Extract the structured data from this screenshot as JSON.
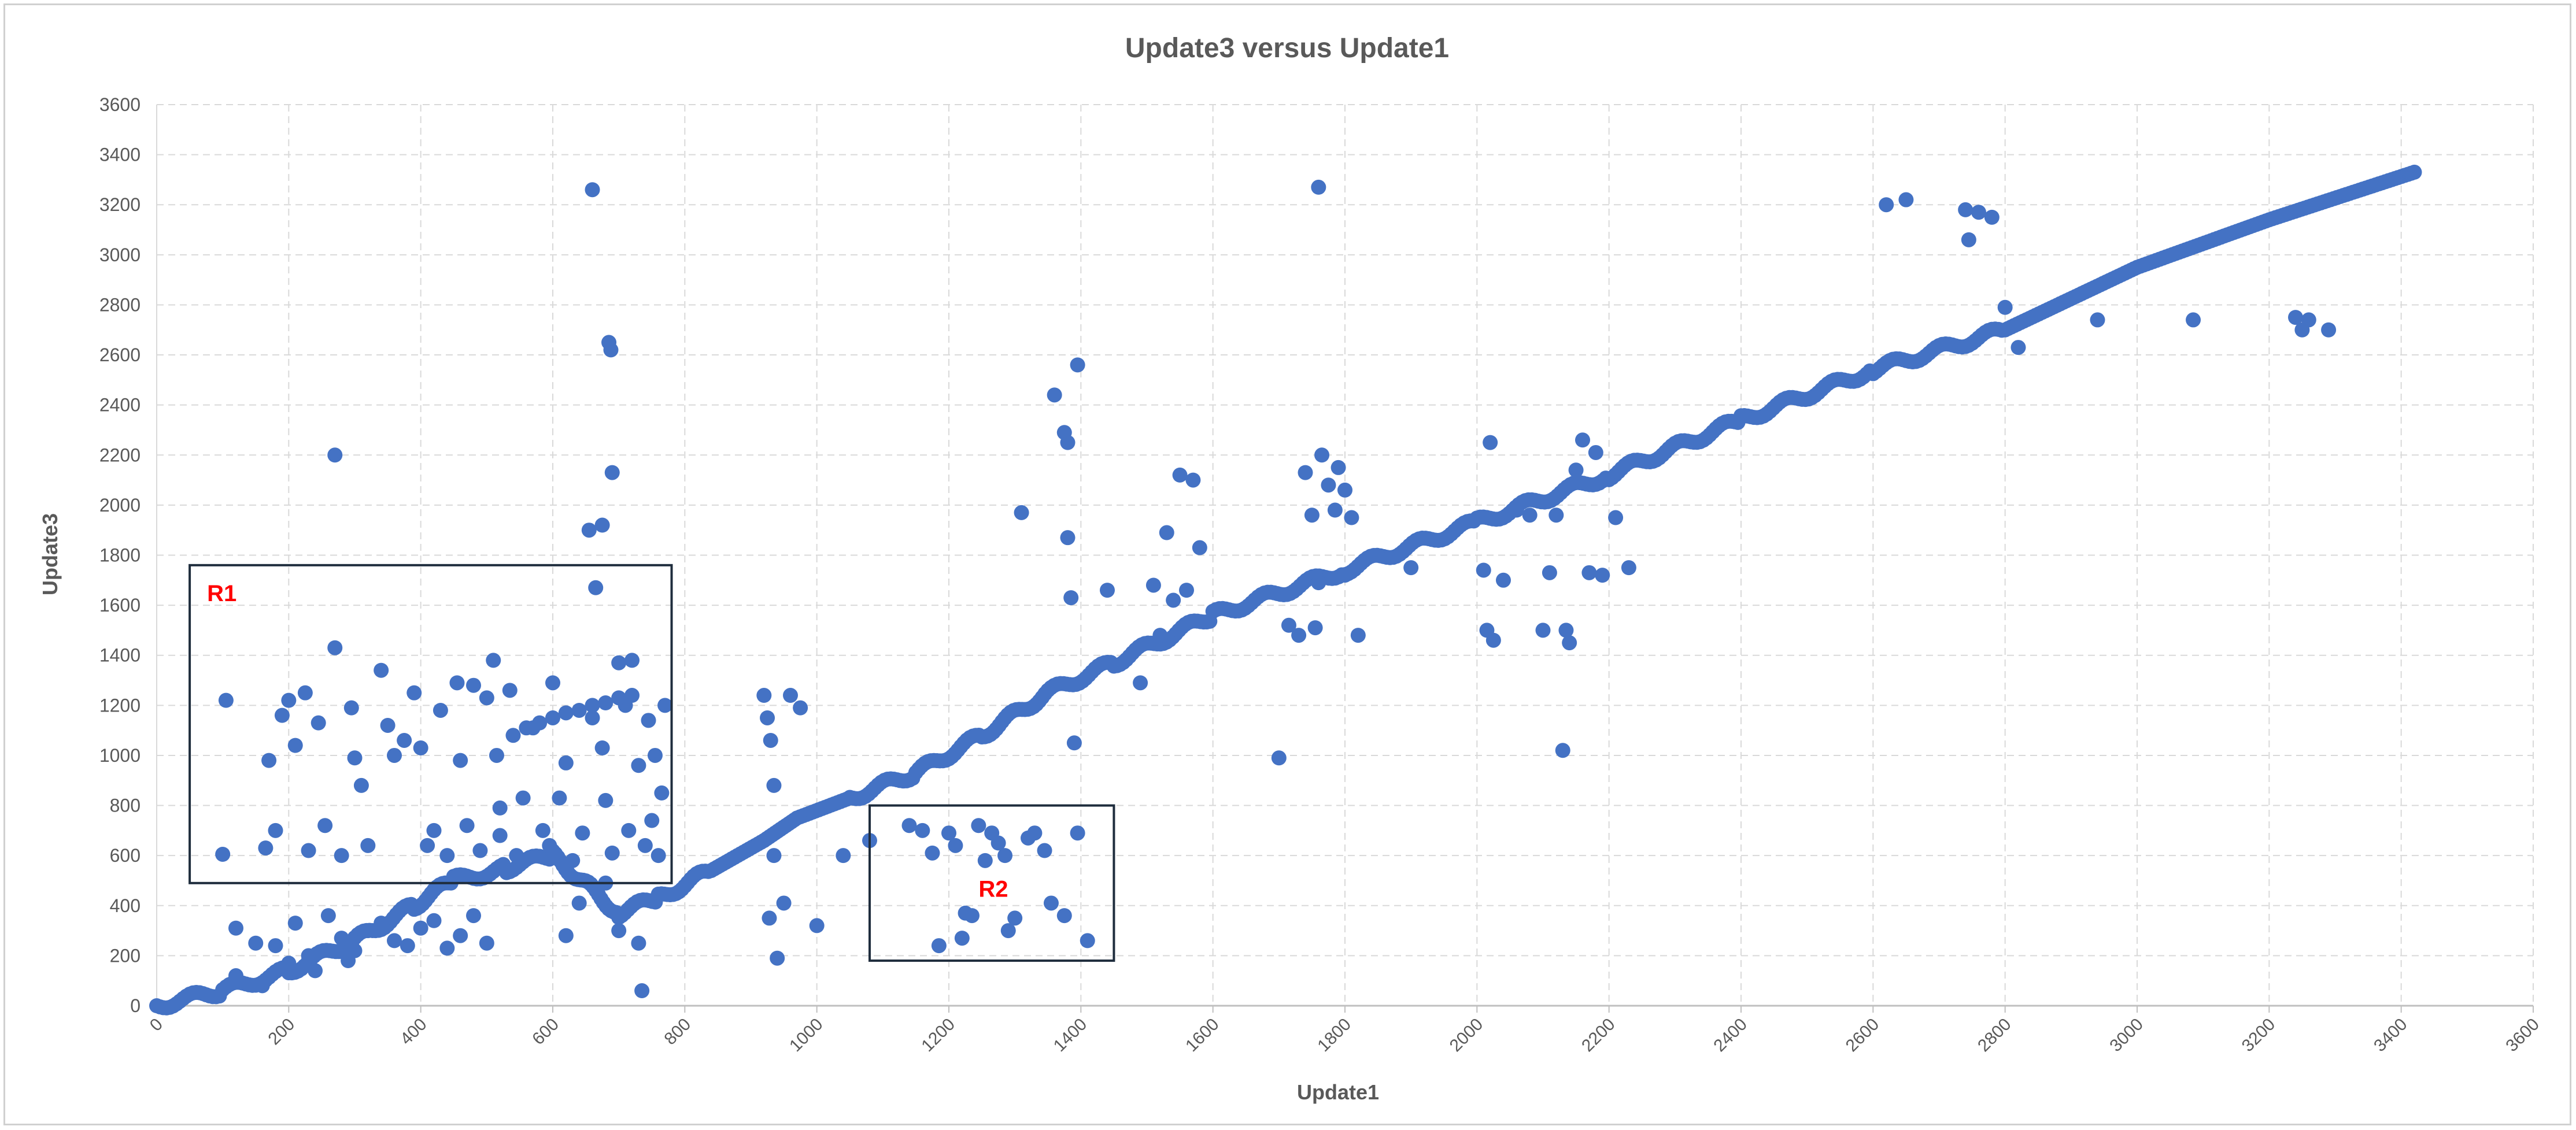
{
  "chart_data": {
    "type": "scatter",
    "title": "Update3 versus Update1",
    "xlabel": "Update1",
    "ylabel": "Update3",
    "xlim": [
      0,
      3600
    ],
    "ylim": [
      0,
      3600
    ],
    "x_ticks": [
      0,
      200,
      400,
      600,
      800,
      1000,
      1200,
      1400,
      1600,
      1800,
      2000,
      2200,
      2400,
      2600,
      2800,
      3000,
      3200,
      3400,
      3600
    ],
    "y_ticks": [
      0,
      200,
      400,
      600,
      800,
      1000,
      1200,
      1400,
      1600,
      1800,
      2000,
      2200,
      2400,
      2600,
      2800,
      3000,
      3200,
      3400,
      3600
    ],
    "grid": true,
    "marker_color": "#4472C4",
    "annotation_color": "#FF0000",
    "box_color": "#1F2D3D",
    "main_trend": [
      [
        0,
        0
      ],
      [
        100,
        60
      ],
      [
        200,
        140
      ],
      [
        300,
        260
      ],
      [
        390,
        400
      ],
      [
        450,
        500
      ],
      [
        530,
        550
      ],
      [
        600,
        600
      ],
      [
        700,
        370
      ],
      [
        760,
        430
      ],
      [
        840,
        540
      ],
      [
        920,
        660
      ],
      [
        970,
        750
      ],
      [
        1050,
        830
      ],
      [
        1150,
        930
      ],
      [
        1250,
        1080
      ],
      [
        1350,
        1250
      ],
      [
        1450,
        1370
      ],
      [
        1600,
        1560
      ],
      [
        1800,
        1740
      ],
      [
        2000,
        1930
      ],
      [
        2200,
        2120
      ],
      [
        2400,
        2340
      ],
      [
        2600,
        2540
      ],
      [
        2800,
        2700
      ],
      [
        3000,
        2950
      ],
      [
        3200,
        3140
      ],
      [
        3420,
        3330
      ]
    ],
    "regions": [
      {
        "label": "R1",
        "x0": 50,
        "x1": 780,
        "y0": 490,
        "y1": 1760
      },
      {
        "label": "R2",
        "x0": 1080,
        "x1": 1450,
        "y0": 180,
        "y1": 800
      }
    ],
    "points": [
      [
        105,
        1220
      ],
      [
        100,
        605
      ],
      [
        165,
        630
      ],
      [
        170,
        980
      ],
      [
        180,
        700
      ],
      [
        190,
        1160
      ],
      [
        200,
        1220
      ],
      [
        210,
        1040
      ],
      [
        225,
        1250
      ],
      [
        230,
        620
      ],
      [
        245,
        1130
      ],
      [
        255,
        720
      ],
      [
        270,
        1430
      ],
      [
        280,
        600
      ],
      [
        295,
        1190
      ],
      [
        300,
        990
      ],
      [
        310,
        880
      ],
      [
        320,
        640
      ],
      [
        340,
        1340
      ],
      [
        350,
        1120
      ],
      [
        360,
        1000
      ],
      [
        375,
        1060
      ],
      [
        390,
        1250
      ],
      [
        400,
        1030
      ],
      [
        410,
        640
      ],
      [
        420,
        700
      ],
      [
        430,
        1180
      ],
      [
        440,
        600
      ],
      [
        455,
        1290
      ],
      [
        460,
        980
      ],
      [
        470,
        720
      ],
      [
        480,
        1280
      ],
      [
        490,
        620
      ],
      [
        500,
        1230
      ],
      [
        510,
        1380
      ],
      [
        515,
        1000
      ],
      [
        520,
        680
      ],
      [
        535,
        1260
      ],
      [
        545,
        600
      ],
      [
        555,
        830
      ],
      [
        570,
        1110
      ],
      [
        585,
        700
      ],
      [
        595,
        640
      ],
      [
        600,
        1290
      ],
      [
        610,
        830
      ],
      [
        620,
        970
      ],
      [
        630,
        580
      ],
      [
        645,
        690
      ],
      [
        660,
        1150
      ],
      [
        675,
        1030
      ],
      [
        680,
        820
      ],
      [
        690,
        610
      ],
      [
        700,
        1370
      ],
      [
        710,
        1200
      ],
      [
        715,
        700
      ],
      [
        720,
        1380
      ],
      [
        730,
        960
      ],
      [
        740,
        640
      ],
      [
        745,
        1140
      ],
      [
        750,
        740
      ],
      [
        755,
        1000
      ],
      [
        760,
        600
      ],
      [
        765,
        850
      ],
      [
        770,
        1200
      ],
      [
        520,
        790
      ],
      [
        540,
        1080
      ],
      [
        560,
        1110
      ],
      [
        580,
        1130
      ],
      [
        600,
        1150
      ],
      [
        620,
        1170
      ],
      [
        640,
        1180
      ],
      [
        660,
        1200
      ],
      [
        680,
        1210
      ],
      [
        700,
        1230
      ],
      [
        720,
        1240
      ],
      [
        270,
        2200
      ],
      [
        660,
        3260
      ],
      [
        685,
        2650
      ],
      [
        688,
        2620
      ],
      [
        690,
        2130
      ],
      [
        675,
        1920
      ],
      [
        655,
        1900
      ],
      [
        665,
        1670
      ],
      [
        735,
        60
      ],
      [
        680,
        490
      ],
      [
        700,
        300
      ],
      [
        730,
        250
      ],
      [
        640,
        410
      ],
      [
        620,
        280
      ],
      [
        920,
        1240
      ],
      [
        925,
        1150
      ],
      [
        930,
        1060
      ],
      [
        935,
        880
      ],
      [
        928,
        350
      ],
      [
        940,
        190
      ],
      [
        950,
        410
      ],
      [
        935,
        600
      ],
      [
        1000,
        320
      ],
      [
        960,
        1240
      ],
      [
        975,
        1190
      ],
      [
        1040,
        600
      ],
      [
        1080,
        660
      ],
      [
        1140,
        720
      ],
      [
        1160,
        700
      ],
      [
        1175,
        610
      ],
      [
        1185,
        240
      ],
      [
        1200,
        690
      ],
      [
        1210,
        640
      ],
      [
        1220,
        270
      ],
      [
        1225,
        370
      ],
      [
        1235,
        360
      ],
      [
        1245,
        720
      ],
      [
        1255,
        580
      ],
      [
        1265,
        690
      ],
      [
        1275,
        650
      ],
      [
        1285,
        600
      ],
      [
        1290,
        300
      ],
      [
        1300,
        350
      ],
      [
        1320,
        670
      ],
      [
        1330,
        690
      ],
      [
        1345,
        620
      ],
      [
        1355,
        410
      ],
      [
        1375,
        360
      ],
      [
        1395,
        690
      ],
      [
        1410,
        260
      ],
      [
        1310,
        1970
      ],
      [
        1360,
        2440
      ],
      [
        1375,
        2290
      ],
      [
        1380,
        2250
      ],
      [
        1395,
        2560
      ],
      [
        1385,
        1630
      ],
      [
        1380,
        1870
      ],
      [
        1390,
        1050
      ],
      [
        1440,
        1660
      ],
      [
        1530,
        1890
      ],
      [
        1550,
        2120
      ],
      [
        1570,
        2100
      ],
      [
        1580,
        1830
      ],
      [
        1490,
        1290
      ],
      [
        1510,
        1680
      ],
      [
        1520,
        1480
      ],
      [
        1540,
        1620
      ],
      [
        1560,
        1660
      ],
      [
        1700,
        990
      ],
      [
        1715,
        1520
      ],
      [
        1730,
        1480
      ],
      [
        1740,
        2130
      ],
      [
        1750,
        1960
      ],
      [
        1755,
        1510
      ],
      [
        1760,
        3270
      ],
      [
        1765,
        2200
      ],
      [
        1775,
        2080
      ],
      [
        1785,
        1980
      ],
      [
        1790,
        2150
      ],
      [
        1800,
        2060
      ],
      [
        1810,
        1950
      ],
      [
        1820,
        1480
      ],
      [
        1760,
        1690
      ],
      [
        1800,
        1720
      ],
      [
        1900,
        1750
      ],
      [
        2010,
        1740
      ],
      [
        2015,
        1500
      ],
      [
        2020,
        2250
      ],
      [
        2025,
        1460
      ],
      [
        2040,
        1700
      ],
      [
        2060,
        1980
      ],
      [
        2080,
        1960
      ],
      [
        2100,
        1500
      ],
      [
        2110,
        1730
      ],
      [
        2120,
        1960
      ],
      [
        2130,
        1020
      ],
      [
        2135,
        1500
      ],
      [
        2140,
        1450
      ],
      [
        2150,
        2140
      ],
      [
        2160,
        2260
      ],
      [
        2170,
        1730
      ],
      [
        2180,
        2210
      ],
      [
        2190,
        1720
      ],
      [
        2210,
        1950
      ],
      [
        2230,
        1750
      ],
      [
        2620,
        3200
      ],
      [
        2650,
        3220
      ],
      [
        2740,
        3180
      ],
      [
        2745,
        3060
      ],
      [
        2760,
        3170
      ],
      [
        2780,
        3150
      ],
      [
        2820,
        2630
      ],
      [
        2800,
        2790
      ],
      [
        2940,
        2740
      ],
      [
        3085,
        2740
      ],
      [
        3240,
        2750
      ],
      [
        3250,
        2700
      ],
      [
        3260,
        2740
      ],
      [
        3290,
        2700
      ],
      [
        120,
        310
      ],
      [
        150,
        250
      ],
      [
        180,
        240
      ],
      [
        210,
        330
      ],
      [
        230,
        200
      ],
      [
        260,
        360
      ],
      [
        280,
        270
      ],
      [
        300,
        220
      ],
      [
        320,
        300
      ],
      [
        340,
        330
      ],
      [
        360,
        260
      ],
      [
        380,
        240
      ],
      [
        400,
        310
      ],
      [
        420,
        340
      ],
      [
        440,
        230
      ],
      [
        460,
        280
      ],
      [
        480,
        360
      ],
      [
        500,
        250
      ],
      [
        120,
        120
      ],
      [
        160,
        80
      ],
      [
        200,
        170
      ],
      [
        240,
        140
      ],
      [
        290,
        180
      ]
    ]
  }
}
